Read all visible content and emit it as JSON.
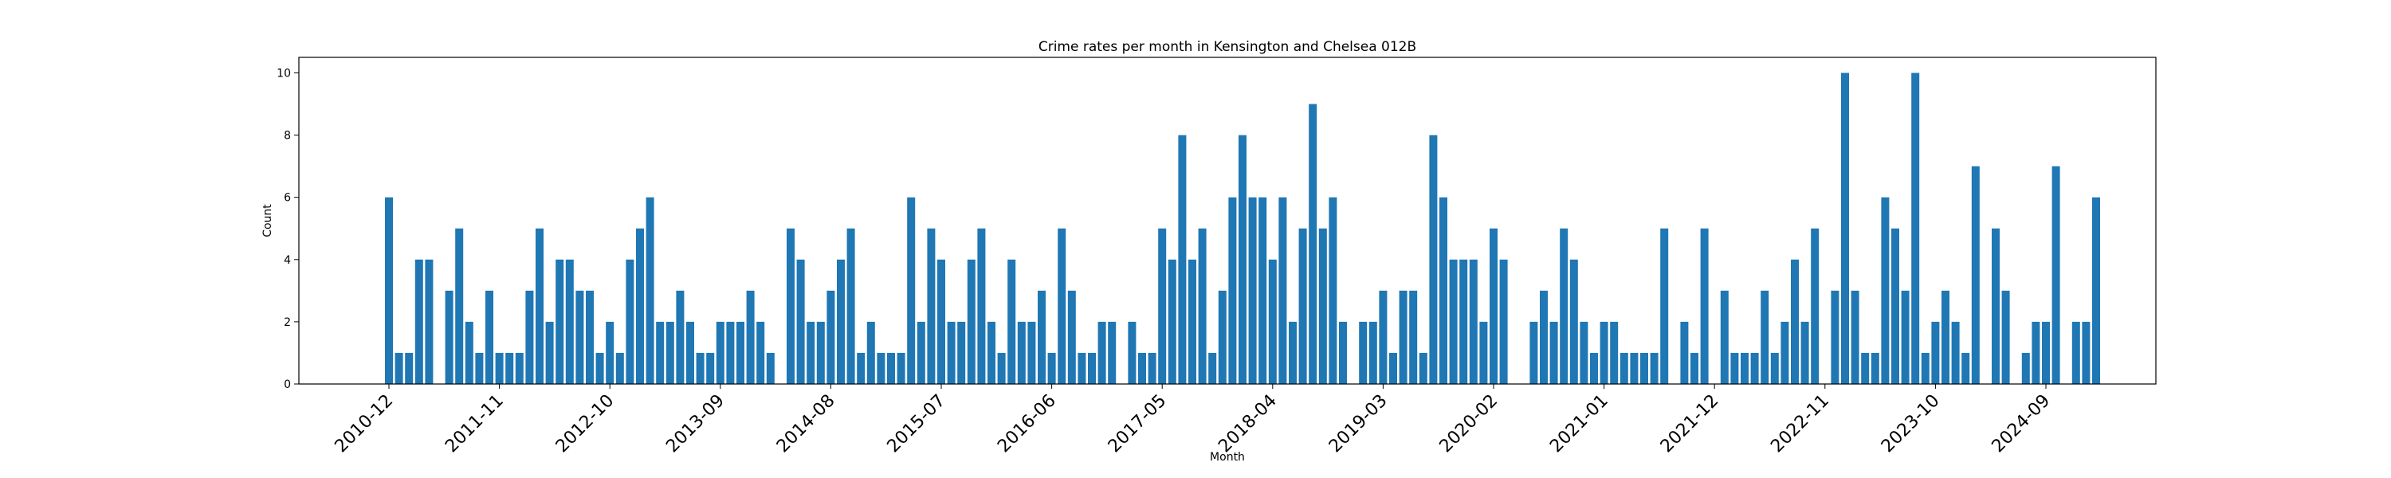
{
  "chart_data": {
    "type": "bar",
    "title": "Crime rates per month in Kensington and Chelsea 012B",
    "xlabel": "Month",
    "ylabel": "Count",
    "ylim": [
      0,
      10.5
    ],
    "yticks": [
      0,
      2,
      4,
      6,
      8,
      10
    ],
    "grid": false,
    "bar_color": "#1f77b4",
    "start_month": "2010-12",
    "xtick_labels": [
      "2010-12",
      "2011-11",
      "2012-10",
      "2013-09",
      "2014-08",
      "2015-07",
      "2016-06",
      "2017-05",
      "2018-04",
      "2019-03",
      "2020-02",
      "2021-01",
      "2021-12",
      "2022-11",
      "2023-10",
      "2024-09"
    ],
    "values": [
      6,
      1,
      1,
      4,
      4,
      null,
      3,
      5,
      2,
      1,
      3,
      1,
      1,
      1,
      3,
      5,
      2,
      4,
      4,
      3,
      3,
      1,
      2,
      1,
      4,
      5,
      6,
      2,
      2,
      3,
      2,
      1,
      1,
      2,
      2,
      2,
      3,
      2,
      1,
      null,
      5,
      4,
      2,
      2,
      3,
      4,
      5,
      1,
      2,
      1,
      1,
      1,
      6,
      2,
      5,
      4,
      2,
      2,
      4,
      5,
      2,
      1,
      4,
      2,
      2,
      3,
      1,
      5,
      3,
      1,
      1,
      2,
      2,
      null,
      2,
      1,
      1,
      5,
      4,
      8,
      4,
      5,
      1,
      3,
      6,
      8,
      6,
      6,
      4,
      6,
      2,
      5,
      9,
      5,
      6,
      2,
      null,
      2,
      2,
      3,
      1,
      3,
      3,
      1,
      8,
      6,
      4,
      4,
      4,
      2,
      5,
      4,
      null,
      null,
      2,
      3,
      2,
      5,
      4,
      2,
      1,
      2,
      2,
      1,
      1,
      1,
      1,
      5,
      null,
      2,
      1,
      5,
      null,
      3,
      1,
      1,
      1,
      3,
      1,
      2,
      4,
      2,
      5,
      null,
      3,
      10,
      3,
      1,
      1,
      6,
      5,
      3,
      10,
      1,
      2,
      3,
      2,
      1,
      7,
      null,
      5,
      3,
      null,
      1,
      2,
      2,
      7,
      null,
      2,
      2,
      6
    ]
  }
}
